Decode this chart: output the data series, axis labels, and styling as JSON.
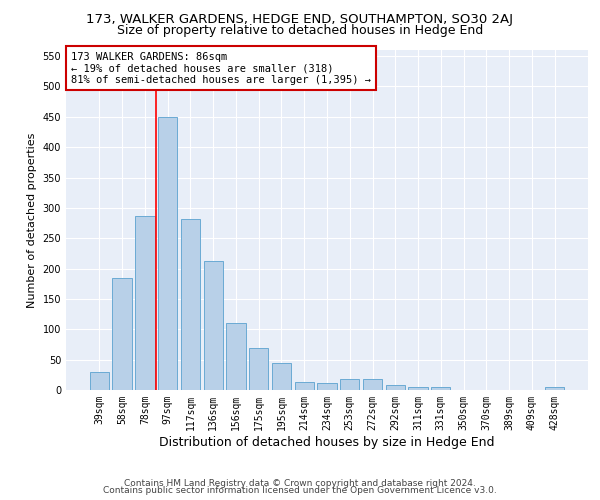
{
  "title1": "173, WALKER GARDENS, HEDGE END, SOUTHAMPTON, SO30 2AJ",
  "title2": "Size of property relative to detached houses in Hedge End",
  "xlabel": "Distribution of detached houses by size in Hedge End",
  "ylabel": "Number of detached properties",
  "categories": [
    "39sqm",
    "58sqm",
    "78sqm",
    "97sqm",
    "117sqm",
    "136sqm",
    "156sqm",
    "175sqm",
    "195sqm",
    "214sqm",
    "234sqm",
    "253sqm",
    "272sqm",
    "292sqm",
    "311sqm",
    "331sqm",
    "350sqm",
    "370sqm",
    "389sqm",
    "409sqm",
    "428sqm"
  ],
  "values": [
    30,
    185,
    287,
    450,
    282,
    212,
    110,
    70,
    45,
    14,
    11,
    18,
    18,
    9,
    5,
    5,
    0,
    0,
    0,
    0,
    5
  ],
  "bar_color": "#b8d0e8",
  "bar_edge_color": "#6aaad4",
  "bar_width": 0.85,
  "redline_x": 2.5,
  "annotation_text": "173 WALKER GARDENS: 86sqm\n← 19% of detached houses are smaller (318)\n81% of semi-detached houses are larger (1,395) →",
  "annotation_box_color": "#ffffff",
  "annotation_box_edge_color": "#cc0000",
  "ylim": [
    0,
    560
  ],
  "yticks": [
    0,
    50,
    100,
    150,
    200,
    250,
    300,
    350,
    400,
    450,
    500,
    550
  ],
  "background_color": "#e8eef8",
  "footer1": "Contains HM Land Registry data © Crown copyright and database right 2024.",
  "footer2": "Contains public sector information licensed under the Open Government Licence v3.0.",
  "title1_fontsize": 9.5,
  "title2_fontsize": 9,
  "xlabel_fontsize": 9,
  "ylabel_fontsize": 8,
  "tick_fontsize": 7,
  "annotation_fontsize": 7.5,
  "footer_fontsize": 6.5
}
